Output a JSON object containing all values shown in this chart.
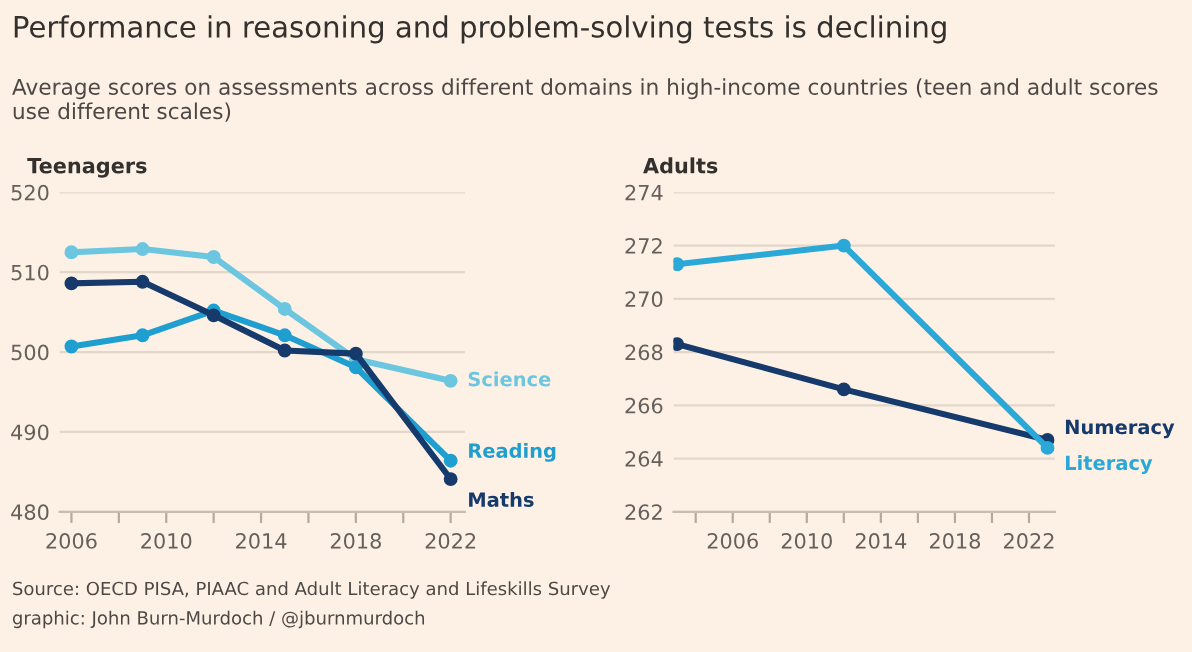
{
  "chart_data": [
    {
      "type": "line",
      "title": "Performance in reasoning and problem-solving tests is declining",
      "subtitle": "Average scores on assessments across different domains in high-income countries (teen and adult scores use different scales)",
      "ylabel": "Teenagers",
      "x": [
        2006,
        2009,
        2012,
        2015,
        2018,
        2022
      ],
      "series": [
        {
          "name": "Science",
          "color": "#6cc6e0",
          "values": [
            512.5,
            512.9,
            511.9,
            505.4,
            499.1,
            496.4
          ]
        },
        {
          "name": "Reading",
          "color": "#1f9fd0",
          "values": [
            500.7,
            502.1,
            505.2,
            502.1,
            498.1,
            486.4
          ]
        },
        {
          "name": "Maths",
          "color": "#163a6c",
          "values": [
            508.6,
            508.8,
            504.6,
            500.2,
            499.8,
            484.1
          ]
        }
      ],
      "xlim": [
        2005.5,
        2022.6
      ],
      "xticks": [
        2006,
        {
          "value": 2008,
          "label": null
        },
        2010,
        {
          "value": 2012,
          "label": null
        },
        2014,
        {
          "value": 2016,
          "label": null
        },
        2018,
        {
          "value": 2020,
          "label": null
        },
        2022
      ],
      "ylim": [
        480,
        520
      ],
      "yticks": [
        480,
        490,
        500,
        510,
        520
      ],
      "grid": "y",
      "marker": "circle",
      "line_style": "solid",
      "legend": false
    },
    {
      "type": "line",
      "ylabel": "Adults",
      "annotations": [
        "Source: OECD PISA, PIAAC and Adult Literacy and Lifeskills Survey",
        "graphic: John Burn-Murdoch / @jburnmurdoch"
      ],
      "series": [
        {
          "name": "Numeracy",
          "color": "#163a6c",
          "x": [
            2003,
            2012,
            2023
          ],
          "values": [
            268.3,
            266.6,
            264.7
          ]
        },
        {
          "name": "Literacy",
          "color": "#2aa8d8",
          "x": [
            2003,
            2012,
            2023
          ],
          "values": [
            271.3,
            272.0,
            264.4
          ]
        }
      ],
      "xlim": [
        2002.8,
        2023.4
      ],
      "xticks": [
        {
          "value": 2004,
          "label": null
        },
        2006,
        {
          "value": 2008,
          "label": null
        },
        2010,
        {
          "value": 2012,
          "label": null
        },
        2014,
        {
          "value": 2016,
          "label": null
        },
        2018,
        {
          "value": 2020,
          "label": null
        },
        2022
      ],
      "ylim": [
        262,
        274
      ],
      "yticks": [
        262,
        264,
        266,
        268,
        270,
        272,
        274
      ],
      "grid": "y",
      "marker": "circle",
      "line_style": "solid",
      "legend": false
    }
  ]
}
